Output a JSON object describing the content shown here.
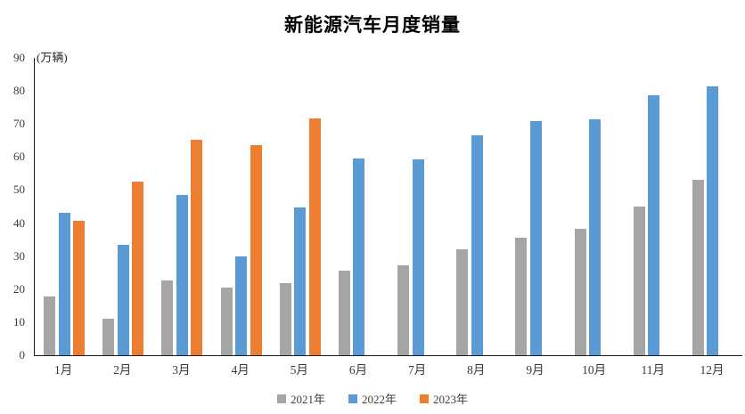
{
  "chart_data": {
    "type": "bar",
    "title": "新能源汽车月度销量",
    "unit_label": "(万辆)",
    "categories": [
      "1月",
      "2月",
      "3月",
      "4月",
      "5月",
      "6月",
      "7月",
      "8月",
      "9月",
      "10月",
      "11月",
      "12月"
    ],
    "series": [
      {
        "name": "2021年",
        "color": "#A5A5A5",
        "values": [
          17.9,
          11.0,
          22.6,
          20.6,
          21.7,
          25.6,
          27.1,
          32.1,
          35.7,
          38.3,
          45.0,
          53.1
        ]
      },
      {
        "name": "2022年",
        "color": "#5B9BD5",
        "values": [
          43.1,
          33.4,
          48.4,
          29.9,
          44.7,
          59.6,
          59.3,
          66.6,
          70.8,
          71.4,
          78.6,
          81.4
        ]
      },
      {
        "name": "2023年",
        "color": "#ED7D31",
        "values": [
          40.8,
          52.5,
          65.3,
          63.6,
          71.7,
          null,
          null,
          null,
          null,
          null,
          null,
          null
        ]
      }
    ],
    "ylim": [
      0,
      90
    ],
    "yticks": [
      0,
      10,
      20,
      30,
      40,
      50,
      60,
      70,
      80,
      90
    ],
    "grid": false,
    "legend_position": "bottom",
    "axis_color": "#1a1a1a",
    "background": "#ffffff"
  }
}
